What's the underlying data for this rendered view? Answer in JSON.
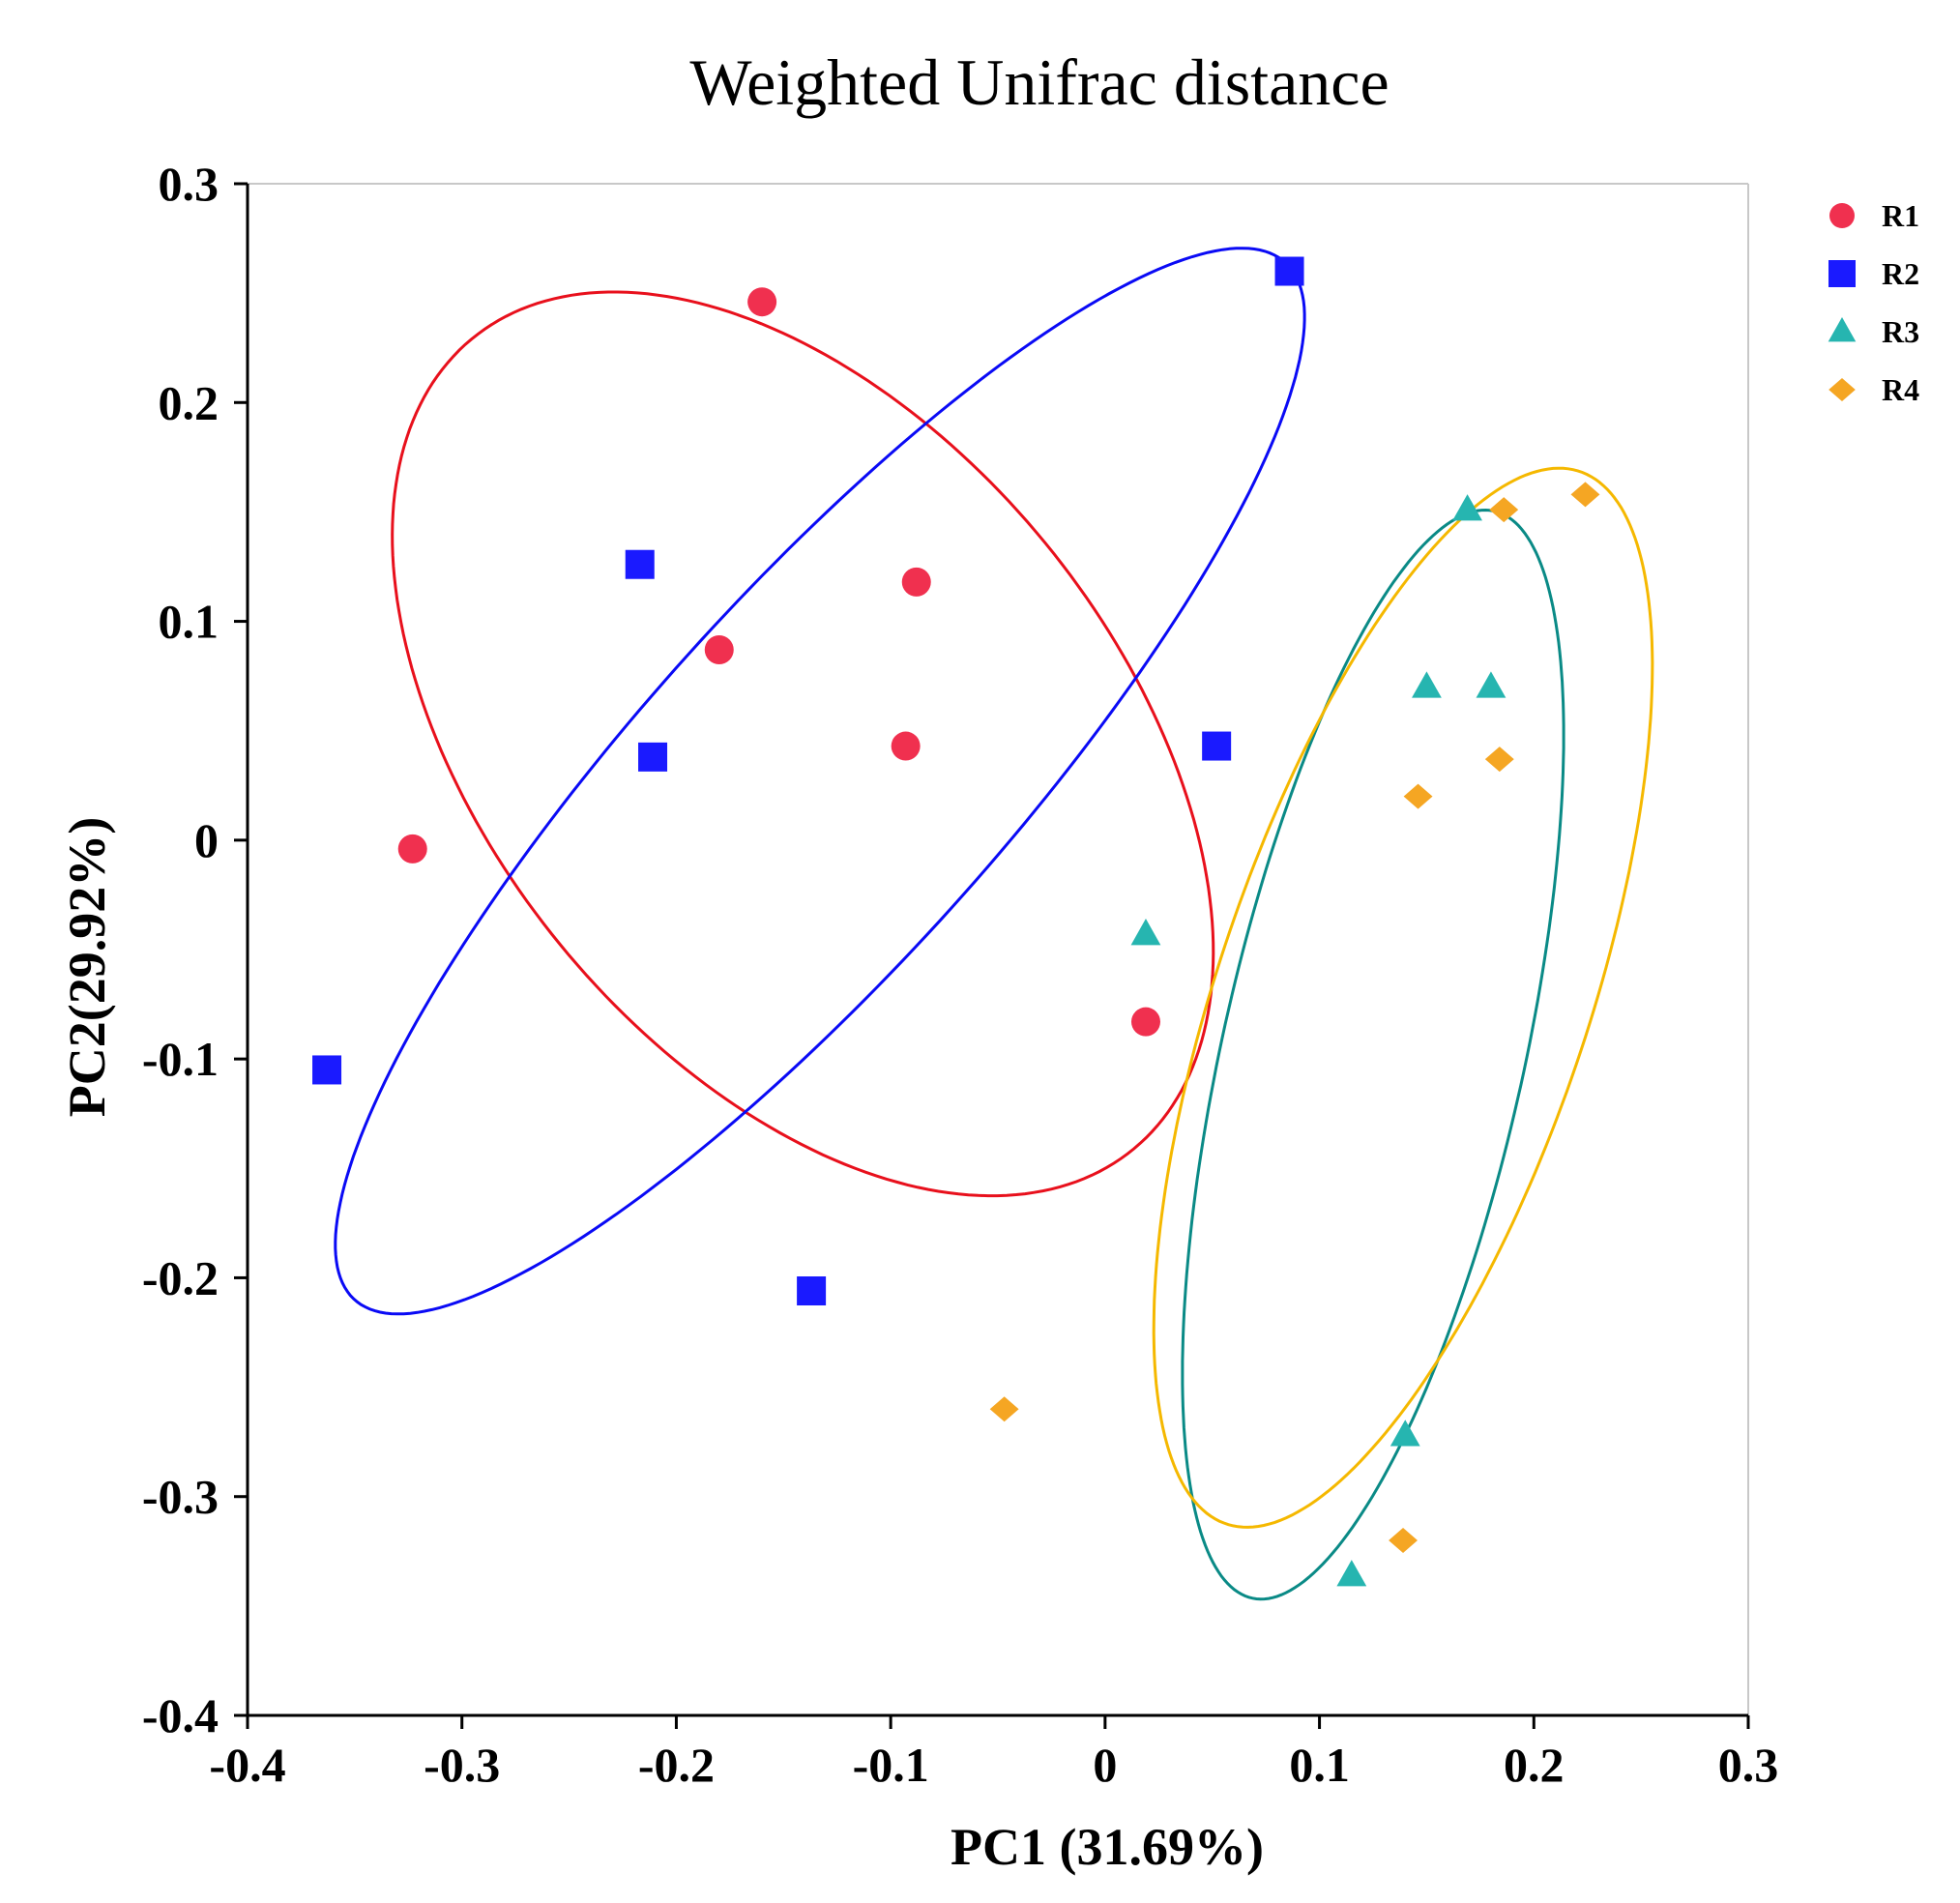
{
  "chart_data": {
    "type": "scatter",
    "title": "Weighted Unifrac distance",
    "xlabel": "PC1 (31.69%)",
    "ylabel": "PC2(29.92%)",
    "xlim": [
      -0.4,
      0.3
    ],
    "ylim": [
      -0.4,
      0.3
    ],
    "xticks": [
      -0.4,
      -0.3,
      -0.2,
      -0.1,
      0,
      0.1,
      0.2,
      0.3
    ],
    "yticks": [
      -0.4,
      -0.3,
      -0.2,
      -0.1,
      0,
      0.1,
      0.2,
      0.3
    ],
    "xtick_labels": [
      "-0.4",
      "-0.3",
      "-0.2",
      "-0.1",
      "0",
      "0.1",
      "0.2",
      "0.3"
    ],
    "ytick_labels": [
      "-0.4",
      "-0.3",
      "-0.2",
      "-0.1",
      "0",
      "0.1",
      "0.2",
      "0.3"
    ],
    "grid": false,
    "legend_position": "top-right",
    "series": [
      {
        "name": "R1",
        "marker": "circle",
        "color": "#f0304f",
        "ellipse_color": "#e8101c",
        "points": [
          [
            -0.16,
            0.246
          ],
          [
            -0.088,
            0.118
          ],
          [
            -0.18,
            0.087
          ],
          [
            -0.093,
            0.043
          ],
          [
            -0.323,
            -0.004
          ],
          [
            0.019,
            -0.083
          ]
        ],
        "ellipse": {
          "center": [
            -0.141,
            0.044
          ],
          "axis_a": [
            -0.1545,
            0.185
          ],
          "axis_b": [
            0.1131,
            0.0918
          ]
        }
      },
      {
        "name": "R2",
        "marker": "square",
        "color": "#1a1aff",
        "ellipse_color": "#0a0af5",
        "points": [
          [
            0.086,
            0.26
          ],
          [
            -0.217,
            0.126
          ],
          [
            -0.211,
            0.038
          ],
          [
            0.052,
            0.043
          ],
          [
            -0.363,
            -0.105
          ],
          [
            -0.137,
            -0.206
          ]
        ],
        "ellipse": {
          "center": [
            -0.133,
            0.027
          ],
          "axis_a": [
            0.2175,
            0.2366
          ],
          "axis_b": [
            -0.0616,
            0.0577
          ]
        }
      },
      {
        "name": "R3",
        "marker": "triangle",
        "color": "#26b5b0",
        "ellipse_color": "#0a8a86",
        "points": [
          [
            0.169,
            0.151
          ],
          [
            0.15,
            0.07
          ],
          [
            0.18,
            0.07
          ],
          [
            0.019,
            -0.043
          ],
          [
            0.14,
            -0.272
          ],
          [
            0.115,
            -0.336
          ]
        ],
        "ellipse": {
          "center": [
            0.125,
            -0.098
          ],
          "axis_a": [
            0.058,
            0.248
          ],
          "axis_b": [
            -0.0674,
            0.0206
          ]
        }
      },
      {
        "name": "R4",
        "marker": "diamond",
        "color": "#f5a623",
        "ellipse_color": "#f5b800",
        "points": [
          [
            0.224,
            0.158
          ],
          [
            0.186,
            0.151
          ],
          [
            0.146,
            0.02
          ],
          [
            0.184,
            0.037
          ],
          [
            -0.047,
            -0.26
          ],
          [
            0.139,
            -0.32
          ]
        ],
        "ellipse": {
          "center": [
            0.139,
            -0.072
          ],
          "axis_a": [
            0.0857,
            0.2392
          ],
          "axis_b": [
            -0.0786,
            0.0367
          ]
        }
      }
    ]
  }
}
